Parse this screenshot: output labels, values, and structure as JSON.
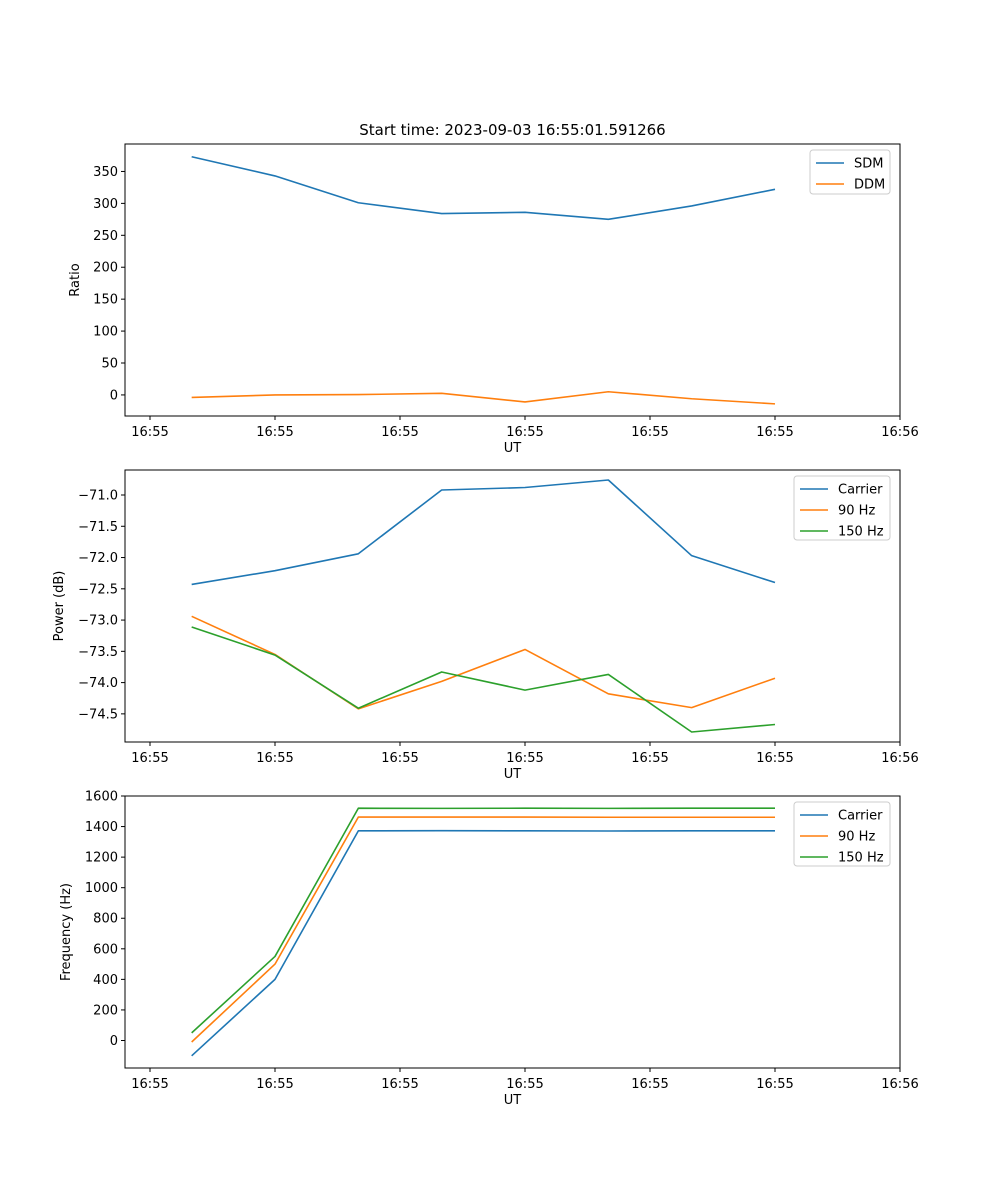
{
  "title": "Start time: 2023-09-03 16:55:01.591266",
  "colors": {
    "blue": "#1f77b4",
    "orange": "#ff7f0e",
    "green": "#2ca02c"
  },
  "chart_data": [
    {
      "type": "line",
      "title": "Start time: 2023-09-03 16:55:01.591266",
      "xlabel": "UT",
      "ylabel": "Ratio",
      "x": [
        1,
        2,
        3,
        4,
        5,
        6,
        7,
        8
      ],
      "xlim": [
        0.2,
        9.5
      ],
      "xticks": [
        0.5,
        2,
        3.5,
        5,
        6.5,
        8,
        9.5
      ],
      "xtick_labels": [
        "16:55",
        "16:55",
        "16:55",
        "16:55",
        "16:55",
        "16:55",
        "16:56"
      ],
      "ylim": [
        -33,
        393
      ],
      "yticks": [
        0,
        50,
        100,
        150,
        200,
        250,
        300,
        350
      ],
      "ytick_labels": [
        "0",
        "50",
        "100",
        "150",
        "200",
        "250",
        "300",
        "350"
      ],
      "legend_position": "top-right",
      "series": [
        {
          "name": "SDM",
          "color": "#1f77b4",
          "values": [
            373,
            343,
            301,
            284,
            286,
            275,
            296,
            322
          ]
        },
        {
          "name": "DDM",
          "color": "#ff7f0e",
          "values": [
            -4,
            0,
            0.5,
            2.5,
            -11,
            5,
            -6,
            -14
          ]
        }
      ]
    },
    {
      "type": "line",
      "title": "",
      "xlabel": "UT",
      "ylabel": "Power (dB)",
      "x": [
        1,
        2,
        3,
        4,
        5,
        6,
        7,
        8
      ],
      "xlim": [
        0.2,
        9.5
      ],
      "xticks": [
        0.5,
        2,
        3.5,
        5,
        6.5,
        8,
        9.5
      ],
      "xtick_labels": [
        "16:55",
        "16:55",
        "16:55",
        "16:55",
        "16:55",
        "16:55",
        "16:56"
      ],
      "ylim": [
        -74.95,
        -70.6
      ],
      "yticks": [
        -71.0,
        -71.5,
        -72.0,
        -72.5,
        -73.0,
        -73.5,
        -74.0,
        -74.5
      ],
      "ytick_labels": [
        "−71.0",
        "−71.5",
        "−72.0",
        "−72.5",
        "−73.0",
        "−73.5",
        "−74.0",
        "−74.5"
      ],
      "legend_position": "top-right",
      "series": [
        {
          "name": "Carrier",
          "color": "#1f77b4",
          "values": [
            -72.43,
            -72.21,
            -71.94,
            -70.92,
            -70.88,
            -70.76,
            -71.97,
            -72.4
          ]
        },
        {
          "name": "90 Hz",
          "color": "#ff7f0e",
          "values": [
            -72.94,
            -73.55,
            -74.42,
            -73.98,
            -73.47,
            -74.18,
            -74.4,
            -73.93
          ]
        },
        {
          "name": "150 Hz",
          "color": "#2ca02c",
          "values": [
            -73.11,
            -73.56,
            -74.41,
            -73.83,
            -74.12,
            -73.87,
            -74.79,
            -74.67
          ]
        }
      ]
    },
    {
      "type": "line",
      "title": "",
      "xlabel": "UT",
      "ylabel": "Frequency (Hz)",
      "x": [
        1,
        2,
        3,
        4,
        5,
        6,
        7,
        8
      ],
      "xlim": [
        0.2,
        9.5
      ],
      "xticks": [
        0.5,
        2,
        3.5,
        5,
        6.5,
        8,
        9.5
      ],
      "xtick_labels": [
        "16:55",
        "16:55",
        "16:55",
        "16:55",
        "16:55",
        "16:55",
        "16:56"
      ],
      "ylim": [
        -180,
        1600
      ],
      "yticks": [
        0,
        200,
        400,
        600,
        800,
        1000,
        1200,
        1400,
        1600
      ],
      "ytick_labels": [
        "0",
        "200",
        "400",
        "600",
        "800",
        "1000",
        "1200",
        "1400",
        "1600"
      ],
      "legend_position": "top-right",
      "series": [
        {
          "name": "Carrier",
          "color": "#1f77b4",
          "values": [
            -100,
            400,
            1372,
            1373,
            1372,
            1371,
            1372,
            1372
          ]
        },
        {
          "name": "90 Hz",
          "color": "#ff7f0e",
          "values": [
            -10,
            500,
            1462,
            1462,
            1462,
            1461,
            1461,
            1461
          ]
        },
        {
          "name": "150 Hz",
          "color": "#2ca02c",
          "values": [
            50,
            550,
            1520,
            1519,
            1520,
            1519,
            1520,
            1520
          ]
        }
      ]
    }
  ]
}
